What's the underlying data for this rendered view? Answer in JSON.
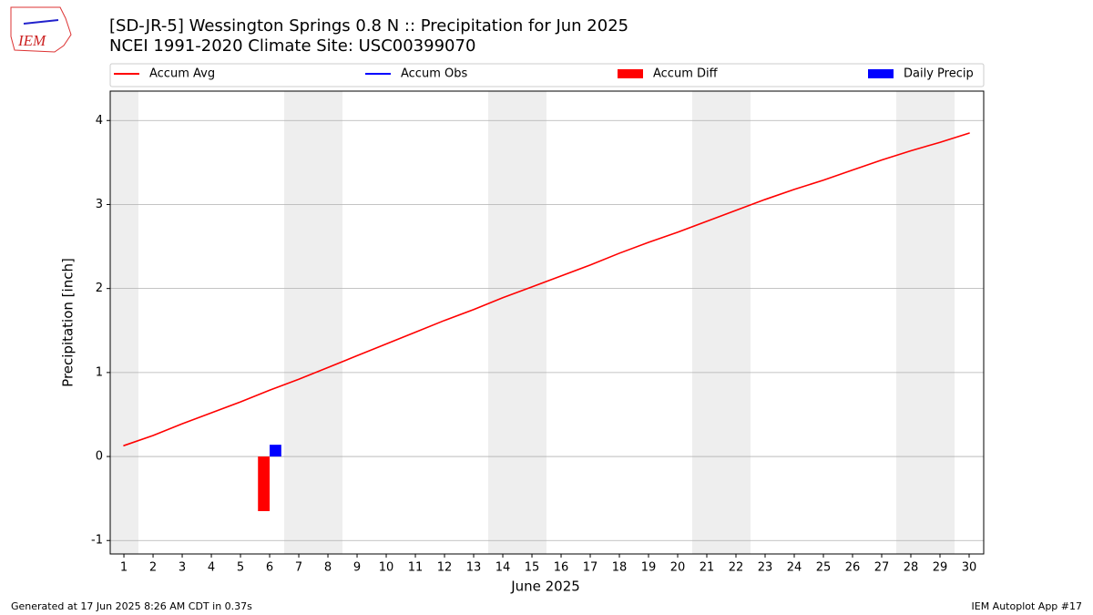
{
  "logo_text": "IEM",
  "footer": {
    "left": "Generated at 17 Jun 2025 8:26 AM CDT in 0.37s",
    "right": "IEM Autoplot App #17"
  },
  "chart_data": {
    "type": "line",
    "title": "[SD-JR-5] Wessington Springs 0.8 N :: Precipitation for Jun 2025",
    "subtitle": "NCEI 1991-2020 Climate Site: USC00399070",
    "xlabel": "June 2025",
    "ylabel": "Precipitation [inch]",
    "x": [
      1,
      2,
      3,
      4,
      5,
      6,
      7,
      8,
      9,
      10,
      11,
      12,
      13,
      14,
      15,
      16,
      17,
      18,
      19,
      20,
      21,
      22,
      23,
      24,
      25,
      26,
      27,
      28,
      29,
      30
    ],
    "xlim": [
      0.53,
      30.5
    ],
    "xticks": [
      1,
      2,
      3,
      4,
      5,
      6,
      7,
      8,
      9,
      10,
      11,
      12,
      13,
      14,
      15,
      16,
      17,
      18,
      19,
      20,
      21,
      22,
      23,
      24,
      25,
      26,
      27,
      28,
      29,
      30
    ],
    "ylim": [
      -1.16,
      4.35
    ],
    "yticks": [
      -1,
      0,
      1,
      2,
      3,
      4
    ],
    "grid": true,
    "legend": "top",
    "series": [
      {
        "name": "Accum Avg",
        "color": "#ff0000",
        "kind": "line",
        "values": [
          0.13,
          0.25,
          0.39,
          0.52,
          0.65,
          0.79,
          0.92,
          1.06,
          1.2,
          1.34,
          1.48,
          1.62,
          1.75,
          1.89,
          2.02,
          2.15,
          2.28,
          2.42,
          2.55,
          2.67,
          2.8,
          2.93,
          3.06,
          3.18,
          3.29,
          3.41,
          3.53,
          3.64,
          3.74,
          3.85
        ]
      },
      {
        "name": "Accum Obs",
        "color": "#0000ff",
        "kind": "line",
        "values": [
          null,
          null,
          null,
          null,
          null,
          0.14,
          null,
          null,
          null,
          null,
          null,
          null,
          null,
          null,
          null,
          null,
          null,
          null,
          null,
          null,
          null,
          null,
          null,
          null,
          null,
          null,
          null,
          null,
          null,
          null
        ]
      },
      {
        "name": "Accum Diff",
        "color": "#ff0000",
        "kind": "bar",
        "values": [
          null,
          null,
          null,
          null,
          null,
          -0.65,
          null,
          null,
          null,
          null,
          null,
          null,
          null,
          null,
          null,
          null,
          null,
          null,
          null,
          null,
          null,
          null,
          null,
          null,
          null,
          null,
          null,
          null,
          null,
          null
        ]
      },
      {
        "name": "Daily Precip",
        "color": "#0000ff",
        "kind": "bar",
        "values": [
          null,
          null,
          null,
          null,
          null,
          0.14,
          null,
          null,
          null,
          null,
          null,
          null,
          null,
          null,
          null,
          null,
          null,
          null,
          null,
          null,
          null,
          null,
          null,
          null,
          null,
          null,
          null,
          null,
          null,
          null
        ]
      }
    ]
  }
}
